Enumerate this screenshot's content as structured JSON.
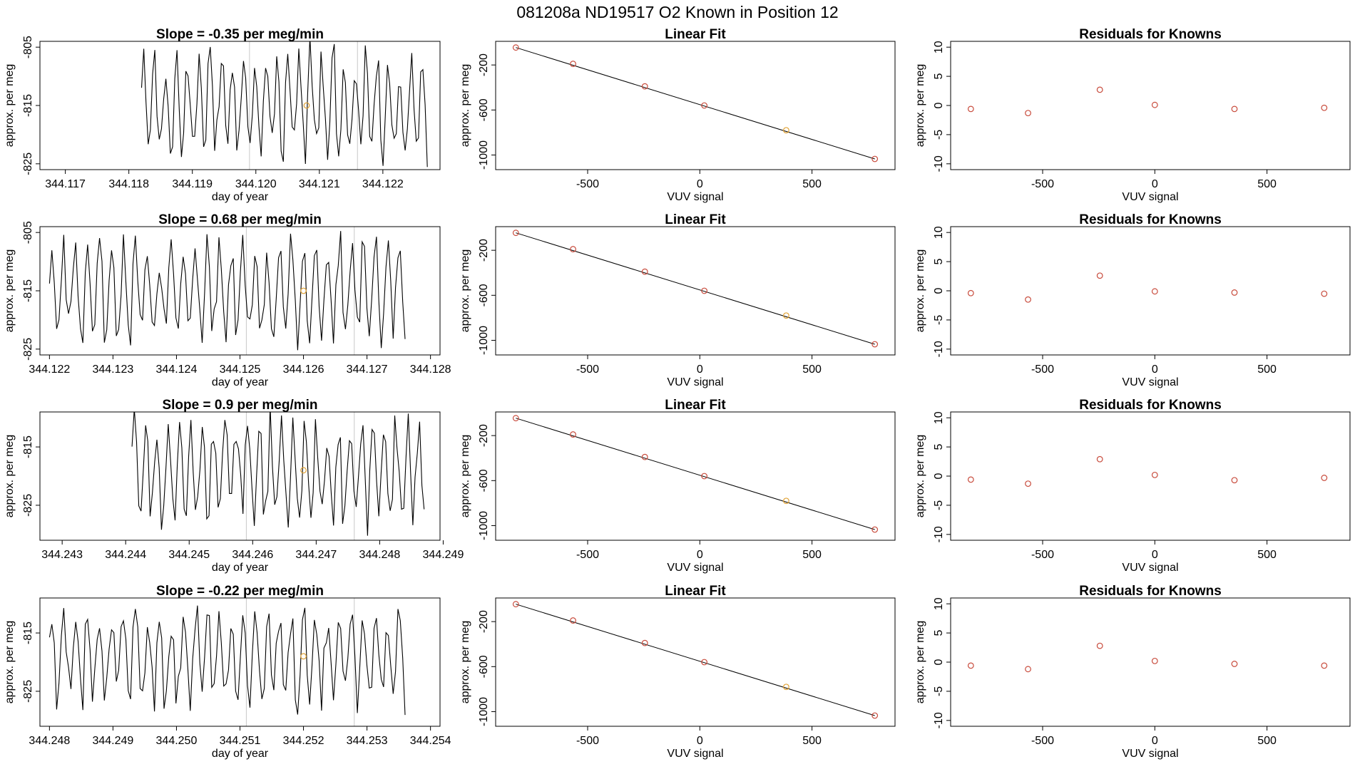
{
  "figure_title": "081208a      ND19517    O2 Known in Position  12",
  "colors": {
    "line": "#000000",
    "point": "#c84b3c",
    "highlight": "#e0a030",
    "vline": "#c8c8c8",
    "axis": "#000000"
  },
  "chart_data": [
    {
      "row": 0,
      "kind": "timeseries",
      "type": "line",
      "title": "Slope =  -0.35  per meg/min",
      "xlabel": "day of year",
      "ylabel": "approx. per meg",
      "xlim": [
        344.1166,
        344.1229
      ],
      "ylim": [
        -826,
        -804
      ],
      "xticks": [
        344.117,
        344.118,
        344.119,
        344.12,
        344.121,
        344.122
      ],
      "xtick_labels": [
        "344.117",
        "344.118",
        "344.119",
        "344.120",
        "344.121",
        "344.122"
      ],
      "yticks": [
        -805,
        -815,
        -825
      ],
      "ytick_labels": [
        "-805",
        "-815",
        "-825"
      ],
      "x_start": 344.1182,
      "x_end": 344.1227,
      "n_points": 130,
      "center": -815,
      "amplitude": 9,
      "seed": 3,
      "vlines": [
        344.1199,
        344.1216
      ],
      "highlight": {
        "x": 344.1208,
        "y": -815
      }
    },
    {
      "row": 0,
      "kind": "fit",
      "type": "scatter",
      "title": "Linear Fit",
      "xlabel": "VUV signal",
      "ylabel": "approx. per meg",
      "xlim": [
        -910,
        870
      ],
      "ylim": [
        -1130,
        10
      ],
      "xticks": [
        -500,
        0,
        500
      ],
      "xtick_labels": [
        "-500",
        "0",
        "500"
      ],
      "yticks": [
        -200,
        -600,
        -1000
      ],
      "ytick_labels": [
        "-200",
        "-600",
        "-1000"
      ],
      "x": [
        -820,
        -565,
        -245,
        20,
        385,
        780
      ],
      "y": [
        -45,
        -190,
        -390,
        -560,
        -780,
        -1035
      ],
      "highlight_index": 4,
      "fit_line": [
        [
          -820,
          -45
        ],
        [
          780,
          -1035
        ]
      ]
    },
    {
      "row": 0,
      "kind": "resid",
      "type": "scatter",
      "title": "Residuals for Knowns",
      "xlabel": "VUV signal",
      "ylabel": "",
      "xlim": [
        -910,
        870
      ],
      "ylim": [
        -11,
        11
      ],
      "xticks": [
        -500,
        0,
        500
      ],
      "xtick_labels": [
        "-500",
        "0",
        "500"
      ],
      "yticks": [
        10,
        5,
        0,
        -5,
        -10
      ],
      "ytick_labels": [
        "10",
        "5",
        "0",
        "-5",
        "-10"
      ],
      "x": [
        -820,
        -565,
        -245,
        0,
        355,
        755
      ],
      "y": [
        -0.6,
        -1.3,
        2.7,
        0.1,
        -0.6,
        -0.4
      ]
    },
    {
      "row": 1,
      "kind": "timeseries",
      "type": "line",
      "title": "Slope =  0.68  per meg/min",
      "xlabel": "day of year",
      "ylabel": "approx. per meg",
      "xlim": [
        344.12185,
        344.12815
      ],
      "ylim": [
        -826,
        -804
      ],
      "xticks": [
        344.122,
        344.123,
        344.124,
        344.125,
        344.126,
        344.127,
        344.128
      ],
      "xtick_labels": [
        "344.122",
        "344.123",
        "344.124",
        "344.125",
        "344.126",
        "344.127",
        "344.128"
      ],
      "yticks": [
        -805,
        -815,
        -825
      ],
      "ytick_labels": [
        "-805",
        "-815",
        "-825"
      ],
      "x_start": 344.122,
      "x_end": 344.1276,
      "n_points": 150,
      "center": -815,
      "amplitude": 8,
      "seed": 7,
      "vlines": [
        344.1251,
        344.1268
      ],
      "highlight": {
        "x": 344.126,
        "y": -815
      }
    },
    {
      "row": 1,
      "kind": "fit",
      "type": "scatter",
      "title": "Linear Fit",
      "xlabel": "VUV signal",
      "ylabel": "approx. per meg",
      "xlim": [
        -910,
        870
      ],
      "ylim": [
        -1130,
        10
      ],
      "xticks": [
        -500,
        0,
        500
      ],
      "xtick_labels": [
        "-500",
        "0",
        "500"
      ],
      "yticks": [
        -200,
        -600,
        -1000
      ],
      "ytick_labels": [
        "-200",
        "-600",
        "-1000"
      ],
      "x": [
        -820,
        -565,
        -245,
        20,
        385,
        780
      ],
      "y": [
        -45,
        -190,
        -390,
        -560,
        -780,
        -1035
      ],
      "highlight_index": 4,
      "fit_line": [
        [
          -820,
          -45
        ],
        [
          780,
          -1035
        ]
      ]
    },
    {
      "row": 1,
      "kind": "resid",
      "type": "scatter",
      "title": "Residuals for Knowns",
      "xlabel": "VUV signal",
      "ylabel": "",
      "xlim": [
        -910,
        870
      ],
      "ylim": [
        -11,
        11
      ],
      "xticks": [
        -500,
        0,
        500
      ],
      "xtick_labels": [
        "-500",
        "0",
        "500"
      ],
      "yticks": [
        10,
        5,
        0,
        -5,
        -10
      ],
      "ytick_labels": [
        "10",
        "5",
        "0",
        "-5",
        "-10"
      ],
      "x": [
        -820,
        -565,
        -245,
        0,
        355,
        755
      ],
      "y": [
        -0.4,
        -1.5,
        2.6,
        -0.1,
        -0.3,
        -0.5
      ]
    },
    {
      "row": 2,
      "kind": "timeseries",
      "type": "line",
      "title": "Slope =  0.9  per meg/min",
      "xlabel": "day of year",
      "ylabel": "approx. per meg",
      "xlim": [
        344.24265,
        344.24895
      ],
      "ylim": [
        -831,
        -809
      ],
      "xticks": [
        344.243,
        344.244,
        344.245,
        344.246,
        344.247,
        344.248,
        344.249
      ],
      "xtick_labels": [
        "344.243",
        "344.244",
        "344.245",
        "344.246",
        "344.247",
        "344.248",
        "344.249"
      ],
      "yticks": [
        -815,
        -825
      ],
      "ytick_labels": [
        "-815",
        "-825"
      ],
      "x_start": 344.2441,
      "x_end": 344.2487,
      "n_points": 130,
      "center": -819,
      "amplitude": 9,
      "seed": 11,
      "vlines": [
        344.2459,
        344.2476
      ],
      "highlight": {
        "x": 344.2468,
        "y": -819
      }
    },
    {
      "row": 2,
      "kind": "fit",
      "type": "scatter",
      "title": "Linear Fit",
      "xlabel": "VUV signal",
      "ylabel": "approx. per meg",
      "xlim": [
        -910,
        870
      ],
      "ylim": [
        -1130,
        10
      ],
      "xticks": [
        -500,
        0,
        500
      ],
      "xtick_labels": [
        "-500",
        "0",
        "500"
      ],
      "yticks": [
        -200,
        -600,
        -1000
      ],
      "ytick_labels": [
        "-200",
        "-600",
        "-1000"
      ],
      "x": [
        -820,
        -565,
        -245,
        20,
        385,
        780
      ],
      "y": [
        -45,
        -190,
        -390,
        -560,
        -780,
        -1035
      ],
      "highlight_index": 4,
      "fit_line": [
        [
          -820,
          -45
        ],
        [
          780,
          -1035
        ]
      ]
    },
    {
      "row": 2,
      "kind": "resid",
      "type": "scatter",
      "title": "Residuals for Knowns",
      "xlabel": "VUV signal",
      "ylabel": "",
      "xlim": [
        -910,
        870
      ],
      "ylim": [
        -11,
        11
      ],
      "xticks": [
        -500,
        0,
        500
      ],
      "xtick_labels": [
        "-500",
        "0",
        "500"
      ],
      "yticks": [
        10,
        5,
        0,
        -5,
        -10
      ],
      "ytick_labels": [
        "10",
        "5",
        "0",
        "-5",
        "-10"
      ],
      "x": [
        -820,
        -565,
        -245,
        0,
        355,
        755
      ],
      "y": [
        -0.6,
        -1.3,
        2.9,
        0.2,
        -0.7,
        -0.3
      ]
    },
    {
      "row": 3,
      "kind": "timeseries",
      "type": "line",
      "title": "Slope =  -0.22  per meg/min",
      "xlabel": "day of year",
      "ylabel": "approx. per meg",
      "xlim": [
        344.24785,
        344.25415
      ],
      "ylim": [
        -831,
        -809
      ],
      "xticks": [
        344.248,
        344.249,
        344.25,
        344.251,
        344.252,
        344.253,
        344.254
      ],
      "xtick_labels": [
        "344.248",
        "344.249",
        "344.250",
        "344.251",
        "344.252",
        "344.253",
        "344.254"
      ],
      "yticks": [
        -815,
        -825
      ],
      "ytick_labels": [
        "-815",
        "-825"
      ],
      "x_start": 344.248,
      "x_end": 344.2536,
      "n_points": 150,
      "center": -819,
      "amplitude": 8,
      "seed": 17,
      "vlines": [
        344.2511,
        344.2528
      ],
      "highlight": {
        "x": 344.252,
        "y": -819
      }
    },
    {
      "row": 3,
      "kind": "fit",
      "type": "scatter",
      "title": "Linear Fit",
      "xlabel": "VUV signal",
      "ylabel": "approx. per meg",
      "xlim": [
        -910,
        870
      ],
      "ylim": [
        -1130,
        10
      ],
      "xticks": [
        -500,
        0,
        500
      ],
      "xtick_labels": [
        "-500",
        "0",
        "500"
      ],
      "yticks": [
        -200,
        -600,
        -1000
      ],
      "ytick_labels": [
        "-200",
        "-600",
        "-1000"
      ],
      "x": [
        -820,
        -565,
        -245,
        20,
        385,
        780
      ],
      "y": [
        -45,
        -190,
        -390,
        -560,
        -780,
        -1035
      ],
      "highlight_index": 4,
      "fit_line": [
        [
          -820,
          -45
        ],
        [
          780,
          -1035
        ]
      ]
    },
    {
      "row": 3,
      "kind": "resid",
      "type": "scatter",
      "title": "Residuals for Knowns",
      "xlabel": "VUV signal",
      "ylabel": "",
      "xlim": [
        -910,
        870
      ],
      "ylim": [
        -11,
        11
      ],
      "xticks": [
        -500,
        0,
        500
      ],
      "xtick_labels": [
        "-500",
        "0",
        "500"
      ],
      "yticks": [
        10,
        5,
        0,
        -5,
        -10
      ],
      "ytick_labels": [
        "10",
        "5",
        "0",
        "-5",
        "-10"
      ],
      "x": [
        -820,
        -565,
        -245,
        0,
        355,
        755
      ],
      "y": [
        -0.6,
        -1.2,
        2.8,
        0.2,
        -0.3,
        -0.6
      ]
    }
  ]
}
